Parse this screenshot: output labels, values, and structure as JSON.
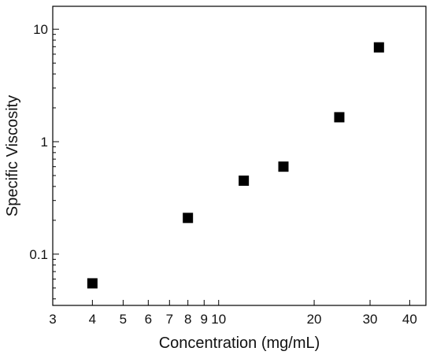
{
  "chart_data": {
    "type": "scatter",
    "title": "",
    "xlabel": "Concentration (mg/mL)",
    "ylabel": "Specific Viscosity",
    "x_scale": "log",
    "y_scale": "log",
    "xlim": [
      3,
      45
    ],
    "ylim": [
      0.035,
      16
    ],
    "x_ticks": [
      {
        "value": 3,
        "label": "3"
      },
      {
        "value": 4,
        "label": "4"
      },
      {
        "value": 5,
        "label": "5"
      },
      {
        "value": 6,
        "label": "6"
      },
      {
        "value": 7,
        "label": "7"
      },
      {
        "value": 8,
        "label": "8"
      },
      {
        "value": 9,
        "label": "9"
      },
      {
        "value": 10,
        "label": "10"
      },
      {
        "value": 20,
        "label": "20"
      },
      {
        "value": 30,
        "label": "30"
      },
      {
        "value": 40,
        "label": "40"
      }
    ],
    "y_major_ticks": [
      {
        "value": 0.1,
        "label": "0.1"
      },
      {
        "value": 1,
        "label": "1"
      },
      {
        "value": 10,
        "label": "10"
      }
    ],
    "grid": false,
    "legend": "none",
    "marker": "square",
    "marker_color": "#000000",
    "points": [
      {
        "x": 4,
        "y": 0.055
      },
      {
        "x": 8,
        "y": 0.21
      },
      {
        "x": 12,
        "y": 0.45
      },
      {
        "x": 16,
        "y": 0.6
      },
      {
        "x": 24,
        "y": 1.65
      },
      {
        "x": 32,
        "y": 6.9
      }
    ]
  }
}
